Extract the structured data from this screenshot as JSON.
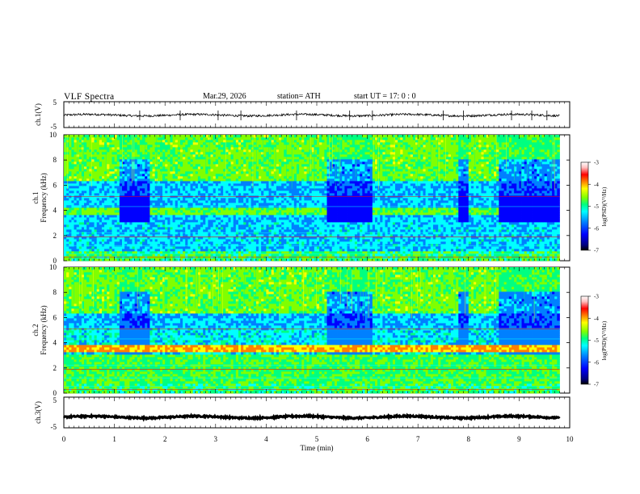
{
  "header": {
    "title": "VLF  Spectra",
    "date": "Mar.29, 2026",
    "station": "station= ATH",
    "start": "start  UT  =    17: 0   : 0"
  },
  "colors": {
    "colormap": [
      "#000080",
      "#0000ff",
      "#0080ff",
      "#00ffff",
      "#00ff80",
      "#80ff00",
      "#ffff00",
      "#ff8000",
      "#ff0000",
      "#ffc0c0",
      "#ffffff"
    ]
  },
  "chart_data": [
    {
      "type": "line",
      "name": "ch.1 waveform",
      "ylabel": "ch.1(V)",
      "ylim": [
        -5,
        5
      ],
      "yticks": [
        {
          "v": 5,
          "label": "5"
        },
        {
          "v": -5,
          "label": "-5"
        }
      ],
      "baseline": -0.2,
      "noise_amplitude": 0.4,
      "spikes": [
        1.5,
        2.3,
        3.05,
        3.5,
        4.6,
        5.65,
        6.1,
        7.5,
        7.9,
        8.85,
        9.25,
        9.55
      ]
    },
    {
      "type": "heatmap",
      "name": "ch.1 spectrogram",
      "ylabel": "ch.1",
      "ylabel2": "Frequency  (kHz)",
      "ylim": [
        0,
        10
      ],
      "yticks": [
        0,
        2,
        4,
        6,
        8,
        10
      ],
      "xlim": [
        0,
        9.8
      ],
      "quiet_intervals": [
        [
          1.1,
          1.7
        ],
        [
          5.2,
          6.1
        ],
        [
          7.8,
          8.0
        ],
        [
          8.6,
          9.8
        ]
      ],
      "colorbar": {
        "label": "log(PSD)(V²/Hz)",
        "range": [
          -7,
          -3
        ],
        "ticks": [
          -3,
          -4,
          -5,
          -6,
          -7
        ]
      }
    },
    {
      "type": "heatmap",
      "name": "ch.2 spectrogram",
      "ylabel": "ch.2",
      "ylabel2": "Frequency  (kHz)",
      "ylim": [
        0,
        10
      ],
      "yticks": [
        0,
        2,
        4,
        6,
        8,
        10
      ],
      "xlim": [
        0,
        9.8
      ],
      "quiet_intervals": [
        [
          1.1,
          1.7
        ],
        [
          5.2,
          6.1
        ],
        [
          7.8,
          8.0
        ],
        [
          8.6,
          9.8
        ]
      ],
      "colorbar": {
        "label": "log(PSD)(V²/Hz)",
        "range": [
          -7,
          -3
        ],
        "ticks": [
          -3,
          -4,
          -5,
          -6,
          -7
        ]
      }
    },
    {
      "type": "line",
      "name": "ch.3 waveform",
      "ylabel": "ch.3(V)",
      "ylim": [
        -5,
        5
      ],
      "yticks": [
        {
          "v": 5,
          "label": "5"
        },
        {
          "v": -5,
          "label": "-5"
        }
      ],
      "baseline": -1.5,
      "noise_amplitude": 0.25
    }
  ],
  "xaxis": {
    "label": "Time  (min)",
    "ticks": [
      "0",
      "1",
      "2",
      "3",
      "4",
      "5",
      "6",
      "7",
      "8",
      "9",
      "10"
    ]
  }
}
